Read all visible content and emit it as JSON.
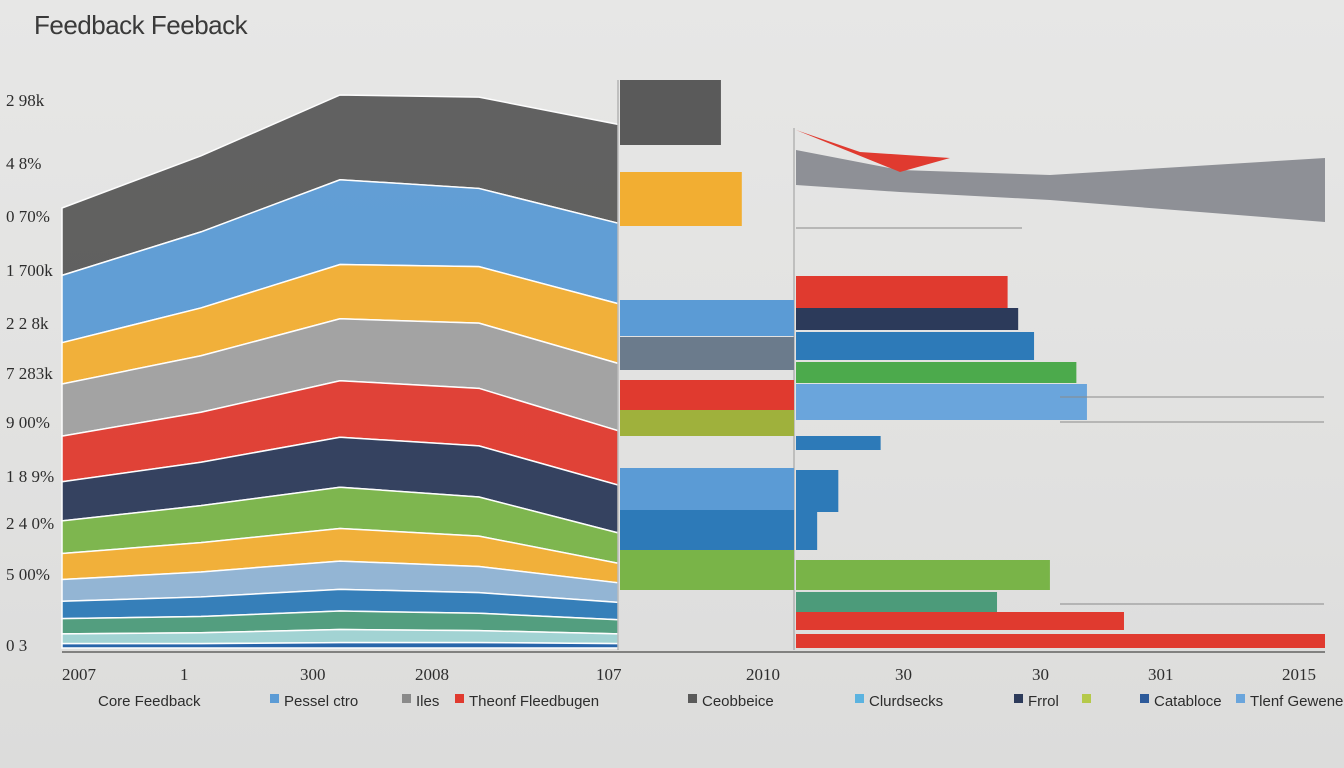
{
  "title": "Feedback Feeback",
  "chart_data": {
    "type": "area",
    "title": "Feedback Feeback",
    "y_tick_labels": [
      "2 98k",
      "4 8%",
      "0 70%",
      "1 700k",
      "2 2 8k",
      "7 283k",
      "9 00%",
      "1 8 9%",
      "2 4 0%",
      "5 00%",
      "0 3"
    ],
    "x_tick_labels": [
      "2007",
      "1",
      "300",
      "2008",
      "107",
      "2010",
      "30",
      "30",
      "301",
      "2015"
    ],
    "legend": [
      "Core Feedback",
      "Pessel ctro",
      "Iles",
      "Theonf Fleedbugen",
      "Ceobbeice",
      "Clurdsecks",
      "Frrol",
      "",
      "Catabloce",
      "Tlenf Gewene"
    ],
    "colors": {
      "dark_grey": "#5a5a5a",
      "blue": "#5b9bd5",
      "yellow": "#f2ae32",
      "grey": "#a0a0a0",
      "red": "#e03a2f",
      "navy": "#2c3a5a",
      "green": "#79b448",
      "light_blue": "#8fb3d4",
      "mid_blue": "#2d7ab8",
      "teal_green": "#4c9b7a",
      "aqua": "#9fd3d3",
      "royal_blue": "#1f5fa8",
      "purple": "#a3328e",
      "olive": "#9fb13c"
    },
    "sections": [
      {
        "name": "",
        "kind": "stacked-area",
        "x": [
          0,
          1,
          2,
          3,
          4
        ],
        "series": [
          {
            "name": "",
            "color": "#5a5a5a",
            "values": [
              62,
              70,
              78,
              84,
              91
            ]
          },
          {
            "name": "",
            "color": "#5b9bd5",
            "values": [
              62,
              70,
              78,
              72,
              74
            ]
          },
          {
            "name": "",
            "color": "#f2ae32",
            "values": [
              38,
              44,
              50,
              52,
              55
            ]
          },
          {
            "name": "",
            "color": "#a0a0a0",
            "values": [
              48,
              52,
              57,
              60,
              62
            ]
          },
          {
            "name": "",
            "color": "#e03a2f",
            "values": [
              42,
              46,
              52,
              53,
              50
            ]
          },
          {
            "name": "",
            "color": "#2c3a5a",
            "values": [
              36,
              40,
              46,
              47,
              44
            ]
          },
          {
            "name": "",
            "color": "#79b448",
            "values": [
              30,
              34,
              38,
              36,
              28
            ]
          },
          {
            "name": "",
            "color": "#f2ae32",
            "values": [
              24,
              27,
              30,
              28,
              18
            ]
          },
          {
            "name": "",
            "color": "#8fb3d4",
            "values": [
              20,
              23,
              26,
              24,
              18
            ]
          },
          {
            "name": "",
            "color": "#2d7ab8",
            "values": [
              16,
              18,
              20,
              19,
              16
            ]
          },
          {
            "name": "",
            "color": "#4c9b7a",
            "values": [
              14,
              15,
              17,
              16,
              13
            ]
          },
          {
            "name": "",
            "color": "#9fd3d3",
            "values": [
              9,
              10,
              12,
              11,
              9
            ]
          },
          {
            "name": "",
            "color": "#1f5fa8",
            "values": [
              4,
              4,
              5,
              5,
              4
            ]
          }
        ]
      },
      {
        "name": "",
        "kind": "bars",
        "bars": [
          {
            "color": "#5a5a5a",
            "value": 58
          },
          {
            "color": "#f2ae32",
            "value": 70
          },
          {
            "color": "#5b9bd5",
            "value": 100
          },
          {
            "color": "#6b7b8c",
            "value": 100
          },
          {
            "color": "#e03a2f",
            "value": 100
          },
          {
            "color": "#9fb13c",
            "value": 100
          },
          {
            "color": "#5b9bd5",
            "value": 100
          },
          {
            "color": "#2d7ab8",
            "value": 100
          },
          {
            "color": "#79b448",
            "value": 100
          }
        ]
      },
      {
        "name": "",
        "kind": "bars",
        "bars": [
          {
            "color": "#e03a2f",
            "value": 40
          },
          {
            "color": "#2c3a5a",
            "value": 42
          },
          {
            "color": "#2d7ab8",
            "value": 45
          },
          {
            "color": "#4caa4c",
            "value": 53
          },
          {
            "color": "#6aa5dc",
            "value": 55
          },
          {
            "color": "#2d7ab8",
            "value": 16
          },
          {
            "color": "#2d7ab8",
            "value": 8
          },
          {
            "color": "#2d7ab8",
            "value": 4
          },
          {
            "color": "#79b448",
            "value": 48
          },
          {
            "color": "#4c9b7a",
            "value": 38
          },
          {
            "color": "#e03a2f",
            "value": 62
          },
          {
            "color": "#e03a2f",
            "value": 100
          }
        ]
      }
    ]
  }
}
